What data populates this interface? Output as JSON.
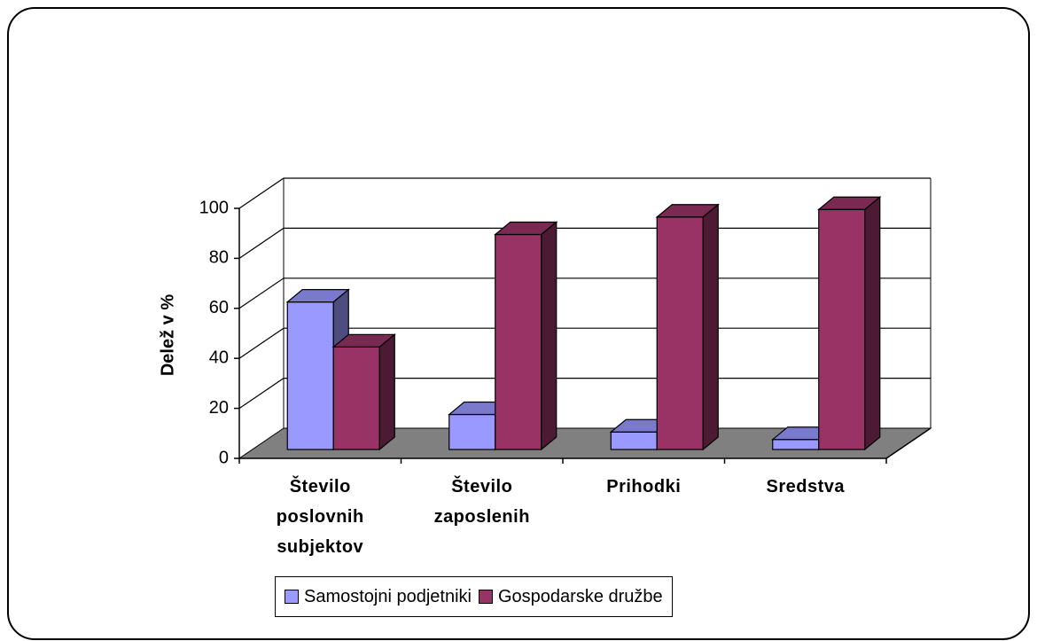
{
  "chart_data": {
    "type": "bar3d",
    "y_label": "Delež v %",
    "categories": [
      "Število poslovnih subjektov",
      "Število zaposlenih",
      "Prihodki",
      "Sredstva"
    ],
    "series": [
      {
        "name": "Samostojni podjetniki",
        "color": "#9999ff",
        "values": [
          59,
          14,
          7,
          4
        ]
      },
      {
        "name": "Gospodarske družbe",
        "color": "#993366",
        "values": [
          41,
          86,
          93,
          96
        ]
      }
    ],
    "ylim": [
      0,
      100
    ],
    "yticks": [
      0,
      20,
      40,
      60,
      80,
      100
    ],
    "grid": true,
    "legend": "bottom"
  }
}
